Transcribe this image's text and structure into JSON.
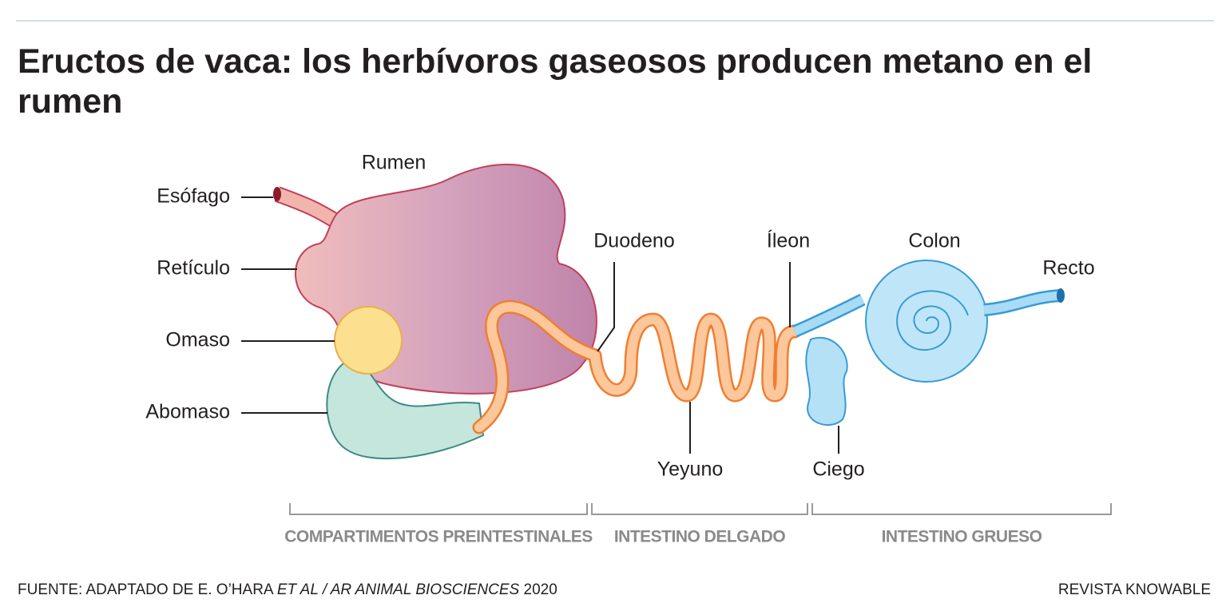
{
  "header": {
    "title": "Eructos de vaca: los herbívoros gaseosos producen metano en el rumen"
  },
  "labels": {
    "rumen": "Rumen",
    "esofago": "Esófago",
    "reticulo": "Retículo",
    "omaso": "Omaso",
    "abomaso": "Abomaso",
    "duodeno": "Duodeno",
    "yeyuno": "Yeyuno",
    "ileon": "Íleon",
    "ciego": "Ciego",
    "colon": "Colon",
    "recto": "Recto"
  },
  "sections": [
    "COMPARTIMENTOS PREINTESTINALES",
    "INTESTINO DELGADO",
    "INTESTINO GRUESO"
  ],
  "footer": {
    "source": [
      "FUENTE: ADAPTADO DE E. O’HARA",
      "ET AL / AR ANIMAL BIOSCIENCES",
      "2020"
    ],
    "credit": "REVISTA KNOWABLE"
  }
}
